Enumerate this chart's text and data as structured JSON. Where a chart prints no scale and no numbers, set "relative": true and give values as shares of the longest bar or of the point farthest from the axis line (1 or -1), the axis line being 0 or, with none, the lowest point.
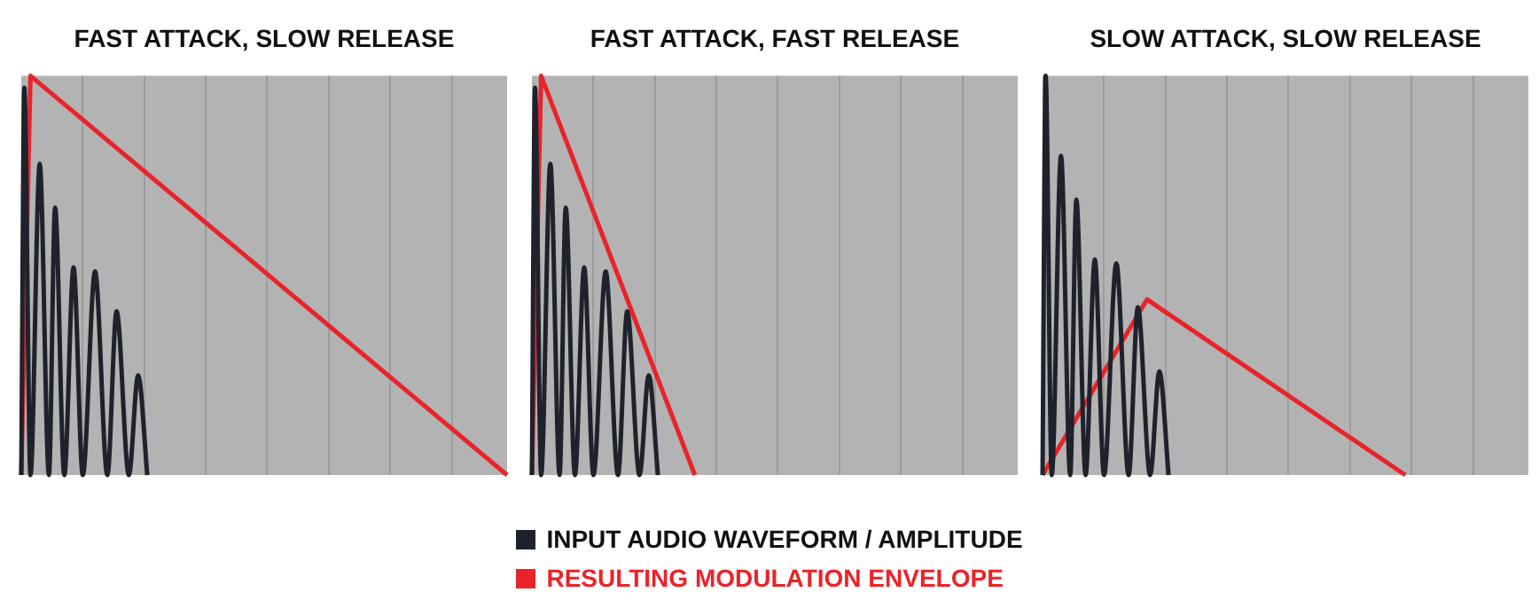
{
  "chart_data": [
    {
      "type": "line",
      "title": "FAST ATTACK, SLOW RELEASE",
      "relative": true,
      "grid": "x",
      "legend": "bottom",
      "marker": "none",
      "categories": [
        null,
        null,
        null,
        null,
        null,
        null,
        null,
        null,
        null,
        null,
        null,
        null,
        null,
        null,
        null,
        null,
        null,
        null,
        null,
        null,
        null,
        null,
        null,
        null,
        null,
        null,
        null,
        null,
        null,
        null,
        null,
        null,
        null,
        null,
        null,
        null,
        null,
        null,
        null,
        null,
        null,
        null,
        null,
        null,
        null,
        null,
        null,
        null,
        null,
        null,
        null,
        null,
        null,
        null,
        null,
        null,
        null,
        null,
        null,
        null,
        null,
        null,
        null,
        null,
        null,
        null,
        null,
        null,
        null,
        null,
        null,
        null,
        null,
        null,
        null,
        null,
        null,
        null,
        null,
        null,
        null,
        null,
        null,
        null,
        null,
        null,
        null,
        null,
        null,
        null,
        null,
        null,
        null,
        null,
        null,
        null,
        null,
        null,
        null,
        null,
        null,
        null,
        null,
        null,
        null,
        null,
        null,
        null,
        null,
        null,
        null,
        null,
        null,
        null,
        null,
        null,
        null,
        null,
        null,
        null,
        null,
        null,
        null,
        null,
        null,
        null,
        null,
        null,
        null,
        null,
        null,
        null,
        null,
        null,
        null,
        null,
        null,
        null,
        null,
        null,
        null,
        null,
        null,
        null,
        null,
        null,
        null,
        null,
        null,
        null,
        null,
        null,
        null,
        null,
        null,
        null,
        null,
        null,
        null
      ],
      "series": [
        {
          "name": "INPUT AUDIO WAVEFORM / AMPLITUDE",
          "color": "#1e222c",
          "values": [
            0,
            0.97,
            null,
            0,
            null,
            null,
            0.78,
            null,
            null,
            0,
            null,
            0.67,
            null,
            null,
            0,
            null,
            null,
            0.52,
            null,
            null,
            0,
            null,
            null,
            null,
            0.51,
            null,
            null,
            null,
            0,
            null,
            null,
            0.41,
            null,
            null,
            null,
            0,
            null,
            null,
            0.25,
            null,
            null,
            0,
            null,
            null,
            null,
            null,
            null,
            null,
            null,
            null,
            null,
            null,
            null,
            null,
            null,
            null,
            null,
            null,
            null,
            null,
            null,
            null,
            null,
            null,
            null,
            null,
            null,
            null,
            null,
            null,
            null,
            null,
            null,
            null,
            null,
            null,
            null,
            null,
            null,
            null,
            null,
            null,
            null,
            null,
            null,
            null,
            null,
            null,
            null,
            null,
            null,
            null,
            null,
            null,
            null,
            null,
            null,
            null,
            null,
            null,
            null,
            null,
            null,
            null,
            null,
            null,
            null,
            null,
            null,
            null,
            null,
            null,
            null,
            null,
            null,
            null,
            null,
            null,
            null,
            null,
            null,
            null,
            null,
            null,
            null,
            null,
            null,
            null,
            null,
            null,
            null,
            null,
            null,
            null,
            null,
            null,
            null,
            null,
            null,
            null,
            null,
            null,
            null,
            null,
            null,
            null,
            null,
            null,
            null,
            null,
            null,
            null,
            null,
            null,
            null,
            null,
            null,
            null,
            null
          ]
        },
        {
          "name": "RESULTING MODULATION ENVELOPE",
          "color": "#e8242a",
          "values": [
            0,
            null,
            null,
            1,
            null,
            null,
            null,
            null,
            null,
            null,
            null,
            null,
            null,
            null,
            null,
            null,
            null,
            null,
            null,
            null,
            null,
            null,
            null,
            null,
            null,
            null,
            null,
            null,
            null,
            null,
            null,
            null,
            null,
            null,
            null,
            null,
            null,
            null,
            null,
            null,
            null,
            null,
            null,
            null,
            null,
            null,
            null,
            null,
            null,
            null,
            null,
            null,
            null,
            null,
            null,
            null,
            null,
            null,
            null,
            null,
            null,
            null,
            null,
            null,
            null,
            null,
            null,
            null,
            null,
            null,
            null,
            null,
            null,
            null,
            null,
            null,
            null,
            null,
            null,
            null,
            null,
            null,
            null,
            null,
            null,
            null,
            null,
            null,
            null,
            null,
            null,
            null,
            null,
            null,
            null,
            null,
            null,
            null,
            null,
            null,
            null,
            null,
            null,
            null,
            null,
            null,
            null,
            null,
            null,
            null,
            null,
            null,
            null,
            null,
            null,
            null,
            null,
            null,
            null,
            null,
            null,
            null,
            null,
            null,
            null,
            null,
            null,
            null,
            null,
            null,
            null,
            null,
            null,
            null,
            null,
            null,
            null,
            null,
            null,
            null,
            null,
            null,
            null,
            null,
            null,
            null,
            null,
            null,
            null,
            null,
            null,
            null,
            null,
            null,
            null,
            null,
            null,
            null,
            0
          ]
        }
      ]
    },
    {
      "type": "line",
      "title": "FAST ATTACK, FAST RELEASE",
      "relative": true,
      "grid": "x",
      "marker": "none",
      "categories": [
        null,
        null,
        null,
        null,
        null,
        null,
        null,
        null,
        null,
        null,
        null,
        null,
        null,
        null,
        null,
        null,
        null,
        null,
        null,
        null,
        null,
        null,
        null,
        null,
        null,
        null,
        null,
        null,
        null,
        null,
        null,
        null,
        null,
        null,
        null,
        null,
        null,
        null,
        null,
        null,
        null,
        null,
        null,
        null,
        null,
        null,
        null,
        null,
        null,
        null,
        null,
        null,
        null,
        null,
        null,
        null,
        null,
        null,
        null,
        null,
        null,
        null,
        null,
        null,
        null,
        null,
        null,
        null,
        null,
        null,
        null,
        null,
        null,
        null,
        null,
        null,
        null,
        null,
        null,
        null,
        null,
        null,
        null,
        null,
        null,
        null,
        null,
        null,
        null,
        null,
        null,
        null,
        null,
        null,
        null,
        null,
        null,
        null,
        null,
        null,
        null,
        null,
        null,
        null,
        null,
        null,
        null,
        null,
        null,
        null,
        null,
        null,
        null,
        null,
        null,
        null,
        null,
        null,
        null,
        null,
        null,
        null,
        null,
        null,
        null,
        null,
        null,
        null,
        null,
        null,
        null,
        null,
        null,
        null,
        null,
        null,
        null,
        null,
        null,
        null,
        null,
        null,
        null,
        null,
        null,
        null,
        null,
        null,
        null,
        null,
        null,
        null,
        null,
        null,
        null,
        null,
        null,
        null,
        null
      ],
      "series": [
        {
          "color": "#1e222c",
          "values": [
            0,
            0.97,
            null,
            0,
            null,
            null,
            0.78,
            null,
            null,
            0,
            null,
            0.67,
            null,
            null,
            0,
            null,
            null,
            0.52,
            null,
            null,
            0,
            null,
            null,
            null,
            0.51,
            null,
            null,
            null,
            0,
            null,
            null,
            0.41,
            null,
            null,
            null,
            0,
            null,
            null,
            0.25,
            null,
            null,
            0,
            null,
            null,
            null,
            null,
            null,
            null,
            null,
            null,
            null,
            null,
            null,
            null,
            null,
            null,
            null,
            null,
            null,
            null,
            null,
            null,
            null,
            null,
            null,
            null,
            null,
            null,
            null,
            null,
            null,
            null,
            null,
            null,
            null,
            null,
            null,
            null,
            null,
            null,
            null,
            null,
            null,
            null,
            null,
            null,
            null,
            null,
            null,
            null,
            null,
            null,
            null,
            null,
            null,
            null,
            null,
            null,
            null,
            null,
            null,
            null,
            null,
            null,
            null,
            null,
            null,
            null,
            null,
            null,
            null,
            null,
            null,
            null,
            null,
            null,
            null,
            null,
            null,
            null,
            null,
            null,
            null,
            null,
            null,
            null,
            null,
            null,
            null,
            null,
            null,
            null,
            null,
            null,
            null,
            null,
            null,
            null,
            null,
            null,
            null,
            null,
            null,
            null,
            null,
            null,
            null,
            null,
            null,
            null,
            null,
            null,
            null,
            null,
            null,
            null,
            null,
            null,
            null
          ]
        },
        {
          "color": "#e8242a",
          "values": [
            0,
            null,
            null,
            1,
            null,
            null,
            null,
            null,
            null,
            null,
            null,
            null,
            null,
            null,
            null,
            null,
            null,
            null,
            null,
            null,
            null,
            null,
            null,
            null,
            null,
            null,
            null,
            null,
            null,
            null,
            null,
            null,
            null,
            null,
            null,
            null,
            null,
            null,
            null,
            null,
            null,
            null,
            null,
            null,
            null,
            null,
            null,
            null,
            null,
            null,
            null,
            null,
            null,
            0,
            null,
            null,
            null,
            null,
            null,
            null,
            null,
            null,
            null,
            null,
            null,
            null,
            null,
            null,
            null,
            null,
            null,
            null,
            null,
            null,
            null,
            null,
            null,
            null,
            null,
            null,
            null,
            null,
            null,
            null,
            null,
            null,
            null,
            null,
            null,
            null,
            null,
            null,
            null,
            null,
            null,
            null,
            null,
            null,
            null,
            null,
            null,
            null,
            null,
            null,
            null,
            null,
            null,
            null,
            null,
            null,
            null,
            null,
            null,
            null,
            null,
            null,
            null,
            null,
            null,
            null,
            null,
            null,
            null,
            null,
            null,
            null,
            null,
            null,
            null,
            null,
            null,
            null,
            null,
            null,
            null,
            null,
            null,
            null,
            null,
            null,
            null,
            null,
            null,
            null,
            null,
            null,
            null,
            null,
            null,
            null,
            null,
            null,
            null,
            null,
            null,
            null,
            null,
            null,
            null
          ]
        }
      ]
    },
    {
      "type": "line",
      "title": "SLOW ATTACK, SLOW RELEASE",
      "relative": true,
      "grid": "x",
      "marker": "none",
      "categories": [
        null,
        null,
        null,
        null,
        null,
        null,
        null,
        null,
        null,
        null,
        null,
        null,
        null,
        null,
        null,
        null,
        null,
        null,
        null,
        null,
        null,
        null,
        null,
        null,
        null,
        null,
        null,
        null,
        null,
        null,
        null,
        null,
        null,
        null,
        null,
        null,
        null,
        null,
        null,
        null,
        null,
        null,
        null,
        null,
        null,
        null,
        null,
        null,
        null,
        null,
        null,
        null,
        null,
        null,
        null,
        null,
        null,
        null,
        null,
        null,
        null,
        null,
        null,
        null,
        null,
        null,
        null,
        null,
        null,
        null,
        null,
        null,
        null,
        null,
        null,
        null,
        null,
        null,
        null,
        null,
        null,
        null,
        null,
        null,
        null,
        null,
        null,
        null,
        null,
        null,
        null,
        null,
        null,
        null,
        null,
        null,
        null,
        null,
        null,
        null,
        null,
        null,
        null,
        null,
        null,
        null,
        null,
        null,
        null,
        null,
        null,
        null,
        null,
        null,
        null,
        null,
        null,
        null,
        null,
        null,
        null,
        null,
        null,
        null,
        null,
        null,
        null,
        null,
        null,
        null,
        null,
        null,
        null,
        null,
        null,
        null,
        null,
        null,
        null,
        null,
        null,
        null,
        null,
        null,
        null,
        null,
        null,
        null,
        null,
        null,
        null,
        null,
        null,
        null,
        null,
        null,
        null,
        null,
        null
      ],
      "series": [
        {
          "color": "#1e222c",
          "values": [
            0,
            1,
            null,
            0,
            null,
            null,
            0.8,
            null,
            null,
            0,
            null,
            0.69,
            null,
            null,
            0,
            null,
            null,
            0.54,
            null,
            null,
            0,
            null,
            null,
            null,
            0.53,
            null,
            null,
            null,
            0,
            null,
            null,
            0.42,
            null,
            null,
            null,
            0,
            null,
            null,
            0.26,
            null,
            null,
            0,
            null,
            null,
            null,
            null,
            null,
            null,
            null,
            null,
            null,
            null,
            null,
            null,
            null,
            null,
            null,
            null,
            null,
            null,
            null,
            null,
            null,
            null,
            null,
            null,
            null,
            null,
            null,
            null,
            null,
            null,
            null,
            null,
            null,
            null,
            null,
            null,
            null,
            null,
            null,
            null,
            null,
            null,
            null,
            null,
            null,
            null,
            null,
            null,
            null,
            null,
            null,
            null,
            null,
            null,
            null,
            null,
            null,
            null,
            null,
            null,
            null,
            null,
            null,
            null,
            null,
            null,
            null,
            null,
            null,
            null,
            null,
            null,
            null,
            null,
            null,
            null,
            null,
            null,
            null,
            null,
            null,
            null,
            null,
            null,
            null,
            null,
            null,
            null,
            null,
            null,
            null,
            null,
            null,
            null,
            null,
            null,
            null,
            null,
            null,
            null,
            null,
            null,
            null,
            null,
            null,
            null,
            null,
            null,
            null,
            null,
            null,
            null,
            null,
            null,
            null,
            null,
            null
          ]
        },
        {
          "color": "#e8242a",
          "values": [
            0,
            null,
            null,
            null,
            null,
            null,
            null,
            null,
            null,
            null,
            null,
            null,
            null,
            null,
            null,
            null,
            null,
            null,
            null,
            null,
            null,
            null,
            null,
            null,
            null,
            null,
            null,
            null,
            null,
            null,
            null,
            null,
            null,
            null,
            0.44,
            null,
            null,
            null,
            null,
            null,
            null,
            null,
            null,
            null,
            null,
            null,
            null,
            null,
            null,
            null,
            null,
            null,
            null,
            null,
            null,
            null,
            null,
            null,
            null,
            null,
            null,
            null,
            null,
            null,
            null,
            null,
            null,
            null,
            null,
            null,
            null,
            null,
            null,
            null,
            null,
            null,
            null,
            null,
            null,
            null,
            null,
            null,
            null,
            null,
            null,
            null,
            null,
            null,
            null,
            null,
            null,
            null,
            null,
            null,
            null,
            null,
            null,
            null,
            null,
            null,
            null,
            null,
            null,
            null,
            null,
            null,
            null,
            null,
            null,
            null,
            null,
            null,
            null,
            null,
            null,
            null,
            null,
            null,
            0,
            null,
            null,
            null,
            null,
            null,
            null,
            null,
            null,
            null,
            null,
            null,
            null,
            null,
            null,
            null,
            null,
            null,
            null,
            null,
            null,
            null,
            null,
            null,
            null,
            null,
            null,
            null,
            null,
            null,
            null,
            null,
            null,
            null,
            null,
            null,
            null,
            null,
            null,
            null,
            null
          ]
        }
      ]
    }
  ]
}
